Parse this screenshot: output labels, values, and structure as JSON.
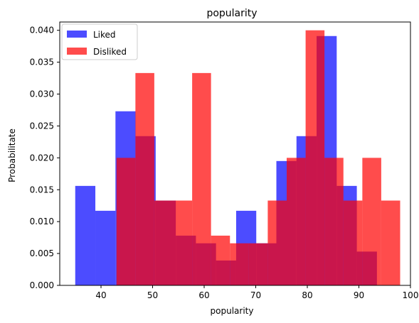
{
  "chart_data": {
    "type": "histogram",
    "title": "popularity",
    "xlabel": "popularity",
    "ylabel": "Probabilitate",
    "xlim": [
      32,
      100
    ],
    "ylim": [
      0,
      0.0413
    ],
    "xticks": [
      40,
      50,
      60,
      70,
      80,
      90,
      100
    ],
    "yticks": [
      "0.000",
      "0.005",
      "0.010",
      "0.015",
      "0.020",
      "0.025",
      "0.030",
      "0.035",
      "0.040"
    ],
    "ytick_values": [
      0,
      0.005,
      0.01,
      0.015,
      0.02,
      0.025,
      0.03,
      0.035,
      0.04
    ],
    "legend_position": "upper-left",
    "series": [
      {
        "name": "Liked",
        "color": "#0000ff",
        "opacity": 0.7,
        "edges": [
          35,
          38.9,
          42.8,
          46.7,
          50.6,
          54.5,
          58.4,
          62.3,
          66.2,
          70.1,
          74.0,
          77.9,
          81.8,
          85.7,
          89.6,
          93.5
        ],
        "values": [
          0.0156,
          0.0117,
          0.0273,
          0.0234,
          0.0133,
          0.0078,
          0.0066,
          0.0039,
          0.0117,
          0.0066,
          0.0195,
          0.0234,
          0.0391,
          0.0156,
          0.0053
        ]
      },
      {
        "name": "Disliked",
        "color": "#ff0000",
        "opacity": 0.7,
        "edges": [
          43,
          46.67,
          50.33,
          54,
          57.67,
          61.33,
          65,
          68.67,
          72.33,
          76,
          79.67,
          83.33,
          87,
          90.67,
          94.33,
          98
        ],
        "values": [
          0.02,
          0.0333,
          0.0133,
          0.0133,
          0.0333,
          0.0078,
          0.0066,
          0.0066,
          0.0133,
          0.02,
          0.04,
          0.02,
          0.0133,
          0.02,
          0.0133
        ]
      }
    ]
  }
}
